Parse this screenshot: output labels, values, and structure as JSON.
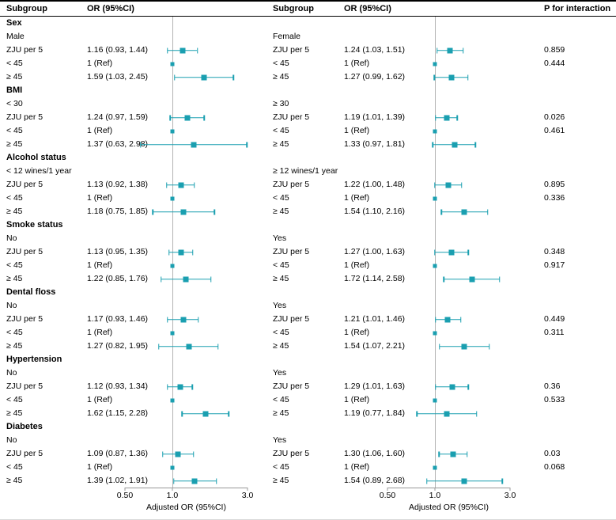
{
  "header": {
    "subgroup_left": "Subgroup",
    "or_left": "OR (95%CI)",
    "subgroup_right": "Subgroup",
    "or_right": "OR (95%CI)",
    "p_interaction": "P for interaction"
  },
  "chart_data": {
    "type": "scatter",
    "subtype": "forest-plot",
    "scale": "log",
    "xlim": [
      0.5,
      3.0
    ],
    "ref_line": 1.0,
    "tick_values": [
      0.5,
      1.0,
      3.0
    ],
    "ticks": [
      "0.50",
      "1.0",
      "3.0"
    ],
    "xlabel": "Adjusted OR (95%CI)",
    "marker_color": "#1a9fb0",
    "refline_color": "#b3b3b3",
    "sections": [
      {
        "title": "Sex",
        "left_group": "Male",
        "right_group": "Female",
        "rows": [
          {
            "label": "ZJU per 5",
            "left": {
              "text": "1.16 (0.93, 1.44)",
              "or": 1.16,
              "lo": 0.93,
              "hi": 1.44
            },
            "right": {
              "text": "1.24 (1.03, 1.51)",
              "or": 1.24,
              "lo": 1.03,
              "hi": 1.51
            },
            "p": "0.859"
          },
          {
            "label": "< 45",
            "left": {
              "text": "1 (Ref)",
              "or": 1
            },
            "right": {
              "text": "1 (Ref)",
              "or": 1
            },
            "p": "0.444"
          },
          {
            "label": "≥ 45",
            "left": {
              "text": "1.59 (1.03, 2.45)",
              "or": 1.59,
              "lo": 1.03,
              "hi": 2.45
            },
            "right": {
              "text": "1.27 (0.99, 1.62)",
              "or": 1.27,
              "lo": 0.99,
              "hi": 1.62
            },
            "p": ""
          }
        ]
      },
      {
        "title": "BMI",
        "left_group": "< 30",
        "right_group": "≥ 30",
        "rows": [
          {
            "label": "ZJU per 5",
            "left": {
              "text": "1.24 (0.97, 1.59)",
              "or": 1.24,
              "lo": 0.97,
              "hi": 1.59
            },
            "right": {
              "text": "1.19 (1.01, 1.39)",
              "or": 1.19,
              "lo": 1.01,
              "hi": 1.39
            },
            "p": "0.026"
          },
          {
            "label": "< 45",
            "left": {
              "text": "1 (Ref)",
              "or": 1
            },
            "right": {
              "text": "1 (Ref)",
              "or": 1
            },
            "p": "0.461"
          },
          {
            "label": "≥ 45",
            "left": {
              "text": "1.37 (0.63, 2.98)",
              "or": 1.37,
              "lo": 0.63,
              "hi": 2.98
            },
            "right": {
              "text": "1.33 (0.97, 1.81)",
              "or": 1.33,
              "lo": 0.97,
              "hi": 1.81
            },
            "p": ""
          }
        ]
      },
      {
        "title": "Alcohol status",
        "left_group": "< 12 wines/1 year",
        "right_group": "≥ 12 wines/1 year",
        "rows": [
          {
            "label": "ZJU per 5",
            "left": {
              "text": "1.13 (0.92, 1.38)",
              "or": 1.13,
              "lo": 0.92,
              "hi": 1.38
            },
            "right": {
              "text": "1.22 (1.00, 1.48)",
              "or": 1.22,
              "lo": 1.0,
              "hi": 1.48
            },
            "p": "0.895"
          },
          {
            "label": "< 45",
            "left": {
              "text": "1 (Ref)",
              "or": 1
            },
            "right": {
              "text": "1 (Ref)",
              "or": 1
            },
            "p": "0.336"
          },
          {
            "label": "≥ 45",
            "left": {
              "text": "1.18 (0.75, 1.85)",
              "or": 1.18,
              "lo": 0.75,
              "hi": 1.85
            },
            "right": {
              "text": "1.54 (1.10, 2.16)",
              "or": 1.54,
              "lo": 1.1,
              "hi": 2.16
            },
            "p": ""
          }
        ]
      },
      {
        "title": "Smoke status",
        "left_group": "No",
        "right_group": "Yes",
        "rows": [
          {
            "label": "ZJU per 5",
            "left": {
              "text": "1.13 (0.95, 1.35)",
              "or": 1.13,
              "lo": 0.95,
              "hi": 1.35
            },
            "right": {
              "text": "1.27 (1.00, 1.63)",
              "or": 1.27,
              "lo": 1.0,
              "hi": 1.63
            },
            "p": "0.348"
          },
          {
            "label": "< 45",
            "left": {
              "text": "1 (Ref)",
              "or": 1
            },
            "right": {
              "text": "1 (Ref)",
              "or": 1
            },
            "p": "0.917"
          },
          {
            "label": "≥ 45",
            "left": {
              "text": "1.22 (0.85, 1.76)",
              "or": 1.22,
              "lo": 0.85,
              "hi": 1.76
            },
            "right": {
              "text": "1.72 (1.14, 2.58)",
              "or": 1.72,
              "lo": 1.14,
              "hi": 2.58
            },
            "p": ""
          }
        ]
      },
      {
        "title": "Dental floss",
        "left_group": "No",
        "right_group": "Yes",
        "rows": [
          {
            "label": "ZJU per 5",
            "left": {
              "text": "1.17 (0.93, 1.46)",
              "or": 1.17,
              "lo": 0.93,
              "hi": 1.46
            },
            "right": {
              "text": "1.21 (1.01, 1.46)",
              "or": 1.21,
              "lo": 1.01,
              "hi": 1.46
            },
            "p": "0.449"
          },
          {
            "label": "< 45",
            "left": {
              "text": "1 (Ref)",
              "or": 1
            },
            "right": {
              "text": "1 (Ref)",
              "or": 1
            },
            "p": "0.311"
          },
          {
            "label": "≥ 45",
            "left": {
              "text": "1.27 (0.82, 1.95)",
              "or": 1.27,
              "lo": 0.82,
              "hi": 1.95
            },
            "right": {
              "text": "1.54 (1.07, 2.21)",
              "or": 1.54,
              "lo": 1.07,
              "hi": 2.21
            },
            "p": ""
          }
        ]
      },
      {
        "title": "Hypertension",
        "left_group": "No",
        "right_group": "Yes",
        "rows": [
          {
            "label": "ZJU per 5",
            "left": {
              "text": "1.12 (0.93, 1.34)",
              "or": 1.12,
              "lo": 0.93,
              "hi": 1.34
            },
            "right": {
              "text": "1.29 (1.01, 1.63)",
              "or": 1.29,
              "lo": 1.01,
              "hi": 1.63
            },
            "p": "0.36"
          },
          {
            "label": "< 45",
            "left": {
              "text": "1 (Ref)",
              "or": 1
            },
            "right": {
              "text": "1 (Ref)",
              "or": 1
            },
            "p": "0.533"
          },
          {
            "label": "≥ 45",
            "left": {
              "text": "1.62 (1.15, 2.28)",
              "or": 1.62,
              "lo": 1.15,
              "hi": 2.28
            },
            "right": {
              "text": "1.19 (0.77, 1.84)",
              "or": 1.19,
              "lo": 0.77,
              "hi": 1.84
            },
            "p": ""
          }
        ]
      },
      {
        "title": "Diabetes",
        "left_group": "No",
        "right_group": "Yes",
        "rows": [
          {
            "label": "ZJU per 5",
            "left": {
              "text": "1.09 (0.87, 1.36)",
              "or": 1.09,
              "lo": 0.87,
              "hi": 1.36
            },
            "right": {
              "text": "1.30 (1.06, 1.60)",
              "or": 1.3,
              "lo": 1.06,
              "hi": 1.6
            },
            "p": "0.03"
          },
          {
            "label": "< 45",
            "left": {
              "text": "1 (Ref)",
              "or": 1
            },
            "right": {
              "text": "1 (Ref)",
              "or": 1
            },
            "p": "0.068"
          },
          {
            "label": "≥ 45",
            "left": {
              "text": "1.39 (1.02, 1.91)",
              "or": 1.39,
              "lo": 1.02,
              "hi": 1.91
            },
            "right": {
              "text": "1.54 (0.89, 2.68)",
              "or": 1.54,
              "lo": 0.89,
              "hi": 2.68
            },
            "p": ""
          }
        ]
      }
    ]
  }
}
